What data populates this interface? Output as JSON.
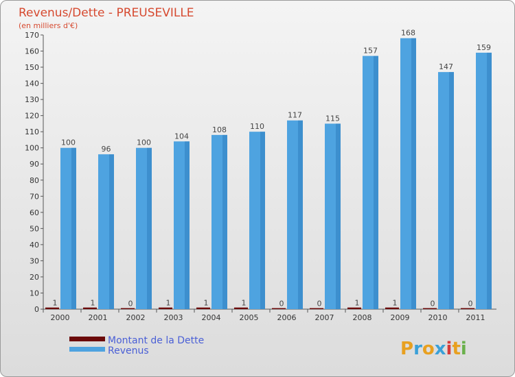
{
  "chart_data": {
    "type": "bar",
    "title": "Revenus/Dette - PREUSEVILLE",
    "subtitle": "(en milliers d'€)",
    "categories": [
      "2000",
      "2001",
      "2002",
      "2003",
      "2004",
      "2005",
      "2006",
      "2007",
      "2008",
      "2009",
      "2010",
      "2011"
    ],
    "series": [
      {
        "name": "Montant de la Dette",
        "color": "#6b0a0a",
        "values": [
          1,
          1,
          0,
          1,
          1,
          1,
          0,
          0,
          1,
          1,
          0,
          0
        ]
      },
      {
        "name": "Revenus",
        "color": "#4ea3e0",
        "values": [
          100,
          96,
          100,
          104,
          108,
          110,
          117,
          115,
          157,
          168,
          147,
          159
        ]
      }
    ],
    "ylim": [
      0,
      170
    ],
    "yticks": [
      0,
      10,
      20,
      30,
      40,
      50,
      60,
      70,
      80,
      90,
      100,
      110,
      120,
      130,
      140,
      150,
      160,
      170
    ],
    "grid": false,
    "legend_position": "bottom-left"
  },
  "logo": {
    "letters": [
      "P",
      "r",
      "o",
      "x",
      "i",
      "t",
      "i"
    ],
    "colors": [
      "#e8a020",
      "#3aa0d8",
      "#e8a020",
      "#3aa0d8",
      "#d63a3a",
      "#e8a020",
      "#6ab04c"
    ]
  }
}
